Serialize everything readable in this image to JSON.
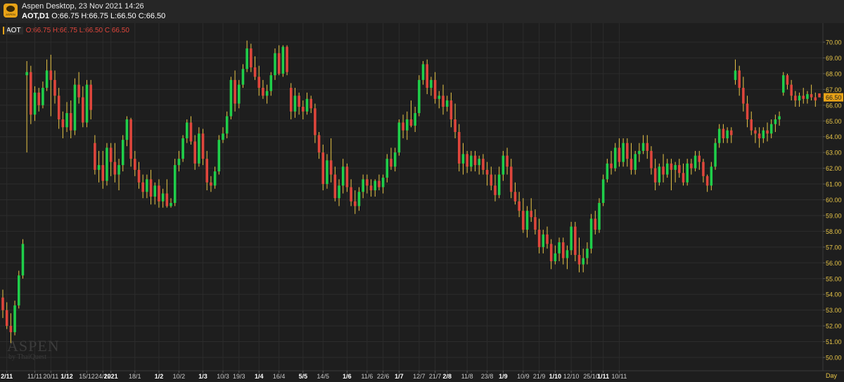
{
  "header": {
    "app_title": "Aspen Desktop, 23 Nov 2021 14:26",
    "symbol_tf": "AOT,D1",
    "ohlc": "O:66.75 H:66.75 L:66.50 C:66.50",
    "app_icon_text": "ASPEN"
  },
  "indicator": {
    "symbol": "AOT",
    "ohlc": "O:66.75 H:66.75 L:66.50 C:66.50"
  },
  "watermark": {
    "brand": "ASPEN",
    "by": "by ThaiQuest"
  },
  "period": "Day",
  "colors": {
    "background": "#1e1e1e",
    "up": "#1fcf4a",
    "down": "#e0463c",
    "wick": "#e8c547",
    "grid": "#2c2c2c",
    "axis_text": "#e8c547",
    "last_price_bg": "#e8a317"
  },
  "chart_data": {
    "type": "candlestick",
    "title": "AOT,D1",
    "ylim": [
      49.5,
      70.5
    ],
    "y_ticks": [
      50,
      51,
      52,
      53,
      54,
      55,
      56,
      57,
      58,
      59,
      60,
      61,
      62,
      63,
      64,
      65,
      66,
      67,
      68,
      69,
      70
    ],
    "last_price": 66.5,
    "last_price_label": "66.50",
    "x_labels": [
      {
        "label": "2/11",
        "bar": 1,
        "bold": true
      },
      {
        "label": "11/11",
        "bar": 8,
        "bold": false
      },
      {
        "label": "20/11",
        "bar": 12,
        "bold": false
      },
      {
        "label": "1/12",
        "bar": 16,
        "bold": true
      },
      {
        "label": "15/12",
        "bar": 21,
        "bold": false
      },
      {
        "label": "24/12",
        "bar": 25,
        "bold": false
      },
      {
        "label": "2021",
        "bar": 27,
        "bold": true
      },
      {
        "label": "18/1",
        "bar": 33,
        "bold": false
      },
      {
        "label": "1/2",
        "bar": 39,
        "bold": true
      },
      {
        "label": "10/2",
        "bar": 44,
        "bold": false
      },
      {
        "label": "1/3",
        "bar": 50,
        "bold": true
      },
      {
        "label": "10/3",
        "bar": 55,
        "bold": false
      },
      {
        "label": "19/3",
        "bar": 59,
        "bold": false
      },
      {
        "label": "1/4",
        "bar": 64,
        "bold": true
      },
      {
        "label": "16/4",
        "bar": 69,
        "bold": false
      },
      {
        "label": "5/5",
        "bar": 75,
        "bold": true
      },
      {
        "label": "14/5",
        "bar": 80,
        "bold": false
      },
      {
        "label": "1/6",
        "bar": 86,
        "bold": true
      },
      {
        "label": "11/6",
        "bar": 91,
        "bold": false
      },
      {
        "label": "22/6",
        "bar": 95,
        "bold": false
      },
      {
        "label": "1/7",
        "bar": 99,
        "bold": true
      },
      {
        "label": "12/7",
        "bar": 104,
        "bold": false
      },
      {
        "label": "21/7",
        "bar": 108,
        "bold": false
      },
      {
        "label": "2/8",
        "bar": 111,
        "bold": true
      },
      {
        "label": "11/8",
        "bar": 116,
        "bold": false
      },
      {
        "label": "23/8",
        "bar": 121,
        "bold": false
      },
      {
        "label": "1/9",
        "bar": 125,
        "bold": true
      },
      {
        "label": "10/9",
        "bar": 130,
        "bold": false
      },
      {
        "label": "21/9",
        "bar": 134,
        "bold": false
      },
      {
        "label": "1/10",
        "bar": 138,
        "bold": true
      },
      {
        "label": "12/10",
        "bar": 142,
        "bold": false
      },
      {
        "label": "25/10",
        "bar": 147,
        "bold": false
      },
      {
        "label": "1/11",
        "bar": 150,
        "bold": true
      },
      {
        "label": "10/11",
        "bar": 154,
        "bold": false
      }
    ],
    "candles": [
      [
        53.8,
        54.3,
        52.5,
        53.0
      ],
      [
        53.0,
        53.5,
        51.8,
        52.0
      ],
      [
        52.0,
        52.8,
        50.9,
        51.6
      ],
      [
        51.6,
        53.6,
        51.4,
        53.3
      ],
      [
        53.3,
        55.5,
        53.1,
        55.2
      ],
      [
        55.2,
        57.5,
        55.0,
        57.2
      ],
      [
        67.9,
        68.8,
        63.0,
        68.1
      ],
      [
        68.1,
        68.5,
        64.8,
        65.4
      ],
      [
        65.4,
        67.2,
        65.0,
        66.8
      ],
      [
        66.8,
        67.1,
        65.6,
        66.0
      ],
      [
        66.0,
        67.5,
        65.8,
        67.1
      ],
      [
        67.1,
        68.9,
        66.9,
        68.2
      ],
      [
        68.2,
        69.2,
        65.3,
        67.6
      ],
      [
        67.6,
        68.2,
        66.1,
        66.6
      ],
      [
        66.6,
        67.1,
        64.5,
        65.1
      ],
      [
        65.1,
        65.6,
        63.9,
        64.6
      ],
      [
        64.6,
        66.2,
        64.3,
        65.5
      ],
      [
        65.5,
        66.3,
        63.9,
        64.4
      ],
      [
        64.4,
        67.7,
        64.1,
        67.3
      ],
      [
        67.3,
        68.1,
        66.1,
        66.5
      ],
      [
        66.5,
        67.2,
        64.6,
        64.9
      ],
      [
        64.9,
        67.6,
        64.6,
        67.3
      ],
      [
        67.3,
        67.6,
        65.1,
        65.7
      ],
      [
        63.6,
        64.1,
        61.6,
        61.9
      ],
      [
        61.9,
        63.1,
        61.1,
        62.2
      ],
      [
        62.2,
        63.1,
        60.7,
        61.2
      ],
      [
        61.2,
        63.6,
        60.9,
        63.3
      ],
      [
        63.3,
        63.6,
        61.5,
        62.4
      ],
      [
        62.4,
        63.6,
        61.1,
        61.6
      ],
      [
        61.6,
        62.6,
        60.6,
        62.2
      ],
      [
        62.2,
        64.1,
        61.8,
        63.8
      ],
      [
        63.8,
        65.3,
        63.4,
        65.1
      ],
      [
        65.1,
        65.2,
        62.1,
        62.6
      ],
      [
        62.6,
        63.1,
        61.5,
        61.9
      ],
      [
        61.9,
        62.4,
        60.7,
        61.1
      ],
      [
        61.1,
        61.6,
        60.1,
        60.5
      ],
      [
        60.5,
        61.6,
        60.1,
        61.3
      ],
      [
        61.3,
        61.9,
        59.7,
        60.2
      ],
      [
        60.2,
        61.1,
        59.7,
        60.9
      ],
      [
        60.9,
        61.3,
        59.5,
        59.9
      ],
      [
        59.9,
        60.7,
        59.5,
        60.4
      ],
      [
        60.4,
        61.3,
        59.5,
        59.6
      ],
      [
        59.6,
        60.1,
        59.5,
        59.8
      ],
      [
        59.8,
        62.6,
        59.6,
        62.2
      ],
      [
        62.2,
        63.1,
        61.8,
        62.6
      ],
      [
        62.6,
        64.1,
        62.4,
        63.9
      ],
      [
        63.9,
        65.1,
        63.6,
        64.9
      ],
      [
        64.9,
        65.3,
        63.5,
        63.7
      ],
      [
        63.7,
        64.1,
        61.9,
        62.3
      ],
      [
        62.3,
        64.6,
        62.1,
        64.2
      ],
      [
        64.2,
        64.5,
        62.2,
        62.6
      ],
      [
        62.6,
        63.1,
        60.6,
        61.1
      ],
      [
        61.1,
        61.5,
        60.5,
        60.9
      ],
      [
        60.9,
        62.1,
        60.7,
        61.8
      ],
      [
        61.8,
        64.1,
        61.6,
        63.8
      ],
      [
        63.8,
        64.6,
        63.6,
        64.2
      ],
      [
        64.2,
        65.6,
        63.9,
        65.3
      ],
      [
        65.3,
        67.8,
        65.1,
        67.6
      ],
      [
        67.6,
        68.2,
        65.6,
        66.1
      ],
      [
        66.1,
        67.6,
        65.8,
        67.3
      ],
      [
        67.3,
        68.6,
        67.1,
        68.3
      ],
      [
        68.3,
        70.1,
        68.1,
        69.6
      ],
      [
        69.6,
        69.9,
        68.1,
        68.4
      ],
      [
        68.4,
        69.1,
        67.6,
        67.8
      ],
      [
        67.8,
        68.5,
        66.6,
        67.1
      ],
      [
        67.1,
        67.6,
        66.4,
        66.6
      ],
      [
        66.6,
        67.3,
        66.1,
        66.9
      ],
      [
        66.9,
        68.1,
        66.6,
        67.9
      ],
      [
        67.9,
        69.6,
        67.6,
        69.3
      ],
      [
        69.3,
        69.8,
        67.9,
        68.0
      ],
      [
        68.0,
        69.8,
        67.8,
        69.7
      ],
      [
        69.7,
        69.8,
        67.9,
        68.1
      ],
      [
        67.1,
        67.4,
        65.1,
        65.6
      ],
      [
        65.6,
        67.1,
        65.2,
        66.6
      ],
      [
        66.6,
        66.8,
        65.4,
        65.9
      ],
      [
        65.9,
        66.3,
        65.1,
        65.6
      ],
      [
        65.6,
        66.8,
        65.4,
        66.4
      ],
      [
        66.4,
        66.6,
        65.5,
        65.8
      ],
      [
        65.8,
        66.1,
        63.6,
        64.1
      ],
      [
        64.1,
        64.3,
        62.6,
        63.0
      ],
      [
        63.0,
        63.5,
        60.6,
        61.0
      ],
      [
        61.0,
        62.9,
        60.7,
        62.5
      ],
      [
        62.5,
        63.9,
        61.1,
        61.6
      ],
      [
        61.6,
        62.1,
        59.9,
        60.1
      ],
      [
        60.1,
        61.3,
        59.6,
        60.9
      ],
      [
        60.9,
        62.6,
        60.4,
        62.1
      ],
      [
        62.1,
        62.3,
        60.5,
        60.8
      ],
      [
        60.8,
        61.3,
        59.6,
        59.9
      ],
      [
        59.9,
        60.6,
        59.1,
        59.6
      ],
      [
        59.6,
        60.8,
        59.3,
        60.5
      ],
      [
        60.5,
        61.6,
        60.1,
        61.3
      ],
      [
        61.3,
        61.6,
        60.4,
        60.9
      ],
      [
        60.9,
        61.3,
        60.2,
        60.6
      ],
      [
        60.6,
        61.3,
        60.2,
        61.2
      ],
      [
        61.2,
        61.6,
        60.6,
        60.8
      ],
      [
        60.8,
        61.6,
        60.4,
        61.4
      ],
      [
        61.4,
        62.9,
        61.1,
        62.6
      ],
      [
        62.6,
        63.3,
        61.9,
        62.1
      ],
      [
        62.1,
        63.3,
        61.8,
        63.0
      ],
      [
        63.0,
        65.1,
        62.8,
        64.9
      ],
      [
        64.9,
        65.4,
        63.9,
        64.4
      ],
      [
        64.4,
        65.6,
        63.8,
        65.1
      ],
      [
        65.1,
        66.3,
        64.6,
        64.7
      ],
      [
        64.7,
        65.9,
        64.3,
        65.5
      ],
      [
        65.5,
        67.9,
        65.3,
        67.6
      ],
      [
        67.6,
        68.8,
        67.3,
        68.6
      ],
      [
        68.6,
        68.9,
        66.7,
        67.1
      ],
      [
        67.1,
        67.8,
        66.6,
        67.6
      ],
      [
        67.6,
        68.1,
        66.1,
        66.4
      ],
      [
        66.4,
        66.9,
        65.8,
        66.6
      ],
      [
        66.6,
        67.3,
        65.4,
        65.9
      ],
      [
        65.9,
        66.6,
        65.6,
        66.3
      ],
      [
        66.3,
        66.8,
        64.6,
        65.1
      ],
      [
        65.1,
        66.1,
        63.9,
        64.3
      ],
      [
        64.3,
        64.8,
        61.8,
        62.3
      ],
      [
        62.3,
        63.6,
        61.6,
        62.9
      ],
      [
        62.9,
        63.1,
        61.7,
        62.1
      ],
      [
        62.1,
        63.1,
        61.8,
        62.8
      ],
      [
        62.8,
        63.1,
        61.8,
        62.2
      ],
      [
        62.2,
        62.8,
        61.6,
        62.6
      ],
      [
        62.6,
        62.9,
        61.6,
        61.9
      ],
      [
        61.9,
        62.4,
        60.9,
        61.6
      ],
      [
        61.6,
        62.1,
        60.6,
        60.9
      ],
      [
        60.9,
        61.6,
        59.9,
        60.3
      ],
      [
        60.3,
        62.1,
        60.1,
        61.6
      ],
      [
        61.6,
        63.1,
        61.2,
        62.8
      ],
      [
        62.8,
        63.3,
        61.6,
        62.1
      ],
      [
        62.1,
        62.6,
        60.1,
        60.5
      ],
      [
        60.5,
        61.1,
        59.7,
        59.9
      ],
      [
        59.9,
        60.5,
        58.9,
        59.3
      ],
      [
        59.3,
        60.1,
        57.9,
        58.1
      ],
      [
        58.1,
        59.6,
        57.6,
        59.3
      ],
      [
        59.3,
        60.1,
        58.6,
        58.9
      ],
      [
        58.9,
        59.4,
        57.8,
        58.1
      ],
      [
        58.1,
        58.8,
        56.6,
        57.0
      ],
      [
        57.0,
        58.1,
        56.6,
        57.8
      ],
      [
        57.8,
        58.3,
        56.9,
        57.2
      ],
      [
        57.2,
        57.5,
        55.6,
        56.1
      ],
      [
        56.1,
        57.1,
        55.9,
        56.6
      ],
      [
        56.6,
        57.6,
        56.1,
        57.3
      ],
      [
        57.3,
        57.6,
        55.9,
        56.3
      ],
      [
        56.3,
        57.1,
        55.6,
        56.8
      ],
      [
        56.8,
        58.6,
        56.5,
        58.3
      ],
      [
        58.3,
        58.6,
        56.1,
        56.5
      ],
      [
        56.5,
        57.6,
        55.4,
        55.9
      ],
      [
        55.9,
        56.9,
        55.4,
        56.3
      ],
      [
        56.3,
        57.3,
        55.9,
        56.9
      ],
      [
        56.9,
        59.1,
        56.6,
        58.8
      ],
      [
        58.8,
        59.3,
        57.8,
        58.1
      ],
      [
        58.1,
        60.1,
        57.9,
        59.8
      ],
      [
        59.8,
        61.6,
        59.6,
        61.3
      ],
      [
        61.3,
        62.6,
        61.1,
        62.3
      ],
      [
        62.3,
        63.1,
        61.6,
        62.0
      ],
      [
        62.0,
        63.6,
        61.8,
        63.3
      ],
      [
        63.3,
        63.9,
        62.1,
        62.4
      ],
      [
        62.4,
        63.9,
        62.1,
        63.6
      ],
      [
        63.6,
        63.9,
        62.1,
        62.6
      ],
      [
        62.6,
        63.6,
        61.6,
        61.9
      ],
      [
        61.9,
        63.1,
        61.6,
        62.9
      ],
      [
        62.9,
        63.6,
        62.4,
        63.1
      ],
      [
        63.1,
        64.1,
        62.9,
        63.6
      ],
      [
        63.6,
        64.1,
        62.6,
        63.1
      ],
      [
        63.1,
        63.4,
        61.6,
        62.0
      ],
      [
        62.0,
        62.6,
        60.6,
        61.1
      ],
      [
        61.1,
        62.3,
        60.9,
        62.1
      ],
      [
        62.1,
        62.9,
        61.1,
        61.6
      ],
      [
        61.6,
        62.6,
        61.4,
        62.3
      ],
      [
        62.3,
        62.6,
        60.6,
        61.9
      ],
      [
        61.9,
        62.4,
        61.1,
        62.2
      ],
      [
        62.2,
        62.6,
        61.4,
        61.7
      ],
      [
        61.7,
        62.3,
        60.9,
        61.1
      ],
      [
        61.1,
        62.6,
        60.9,
        62.3
      ],
      [
        62.3,
        62.6,
        61.6,
        62.0
      ],
      [
        62.0,
        63.1,
        61.8,
        62.8
      ],
      [
        62.8,
        63.1,
        61.9,
        62.4
      ],
      [
        62.4,
        62.6,
        61.1,
        61.5
      ],
      [
        61.5,
        61.6,
        60.5,
        60.9
      ],
      [
        60.9,
        62.4,
        60.6,
        62.1
      ],
      [
        62.1,
        63.9,
        61.9,
        63.6
      ],
      [
        63.6,
        64.8,
        63.3,
        64.5
      ],
      [
        64.5,
        64.8,
        63.6,
        63.9
      ],
      [
        63.9,
        64.6,
        63.6,
        64.4
      ],
      [
        64.4,
        64.6,
        63.6,
        64.1
      ],
      [
        67.6,
        68.9,
        67.3,
        68.2
      ],
      [
        68.2,
        68.5,
        66.6,
        67.1
      ],
      [
        67.1,
        67.8,
        65.6,
        66.1
      ],
      [
        66.1,
        66.6,
        64.6,
        65.1
      ],
      [
        65.1,
        65.6,
        64.1,
        64.4
      ],
      [
        64.4,
        64.6,
        63.6,
        64.2
      ],
      [
        64.2,
        64.6,
        63.3,
        63.9
      ],
      [
        63.9,
        64.6,
        63.6,
        64.4
      ],
      [
        64.4,
        64.9,
        63.7,
        64.2
      ],
      [
        64.2,
        65.1,
        63.9,
        64.8
      ],
      [
        64.8,
        65.4,
        64.3,
        65.1
      ],
      [
        65.1,
        65.6,
        64.7,
        65.3
      ],
      [
        66.8,
        68.1,
        66.6,
        67.9
      ],
      [
        67.9,
        68.0,
        67.0,
        67.3
      ],
      [
        67.3,
        67.6,
        66.3,
        66.6
      ],
      [
        66.6,
        66.9,
        65.9,
        66.3
      ],
      [
        66.3,
        66.8,
        65.9,
        66.6
      ],
      [
        66.6,
        67.1,
        66.1,
        66.4
      ],
      [
        66.4,
        66.9,
        66.1,
        66.7
      ],
      [
        66.7,
        67.3,
        66.3,
        66.5
      ],
      [
        66.5,
        66.8,
        65.9,
        66.3
      ],
      [
        66.75,
        66.75,
        66.5,
        66.5
      ]
    ]
  }
}
